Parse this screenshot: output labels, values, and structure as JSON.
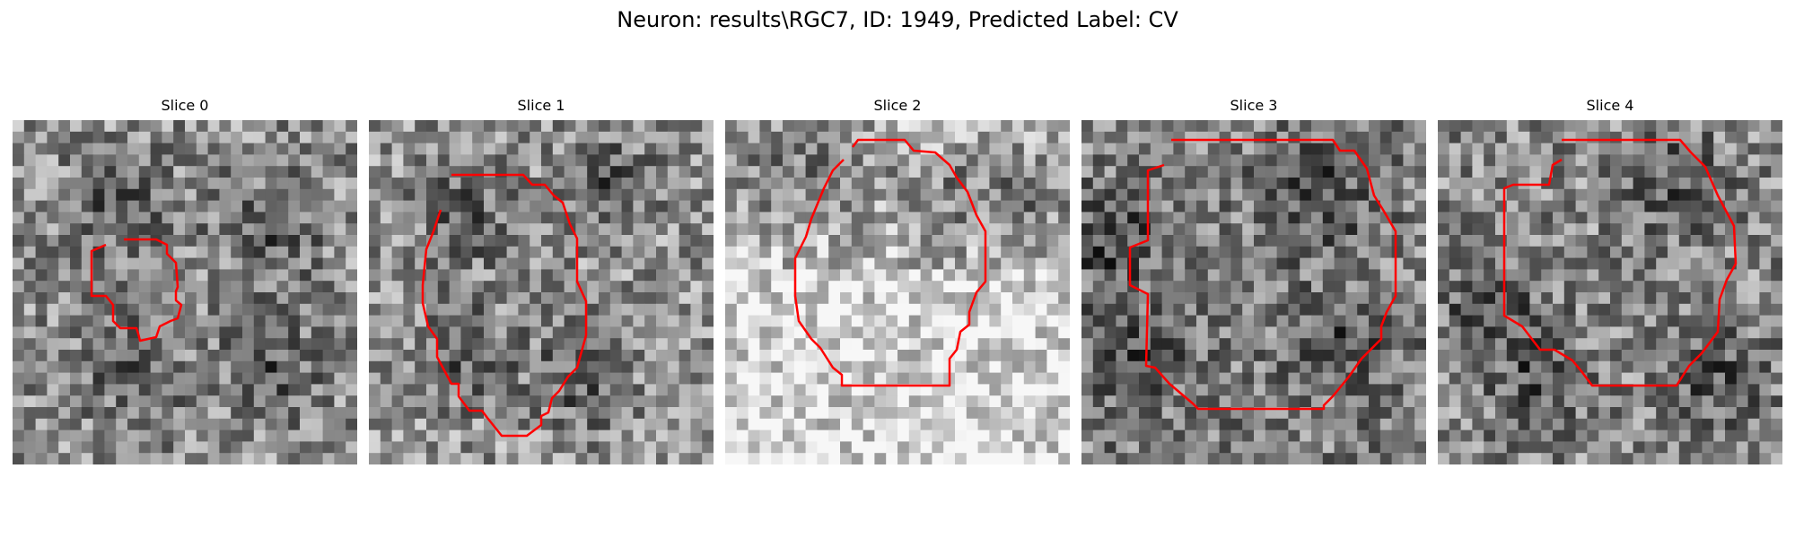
{
  "figure": {
    "title": "Neuron: results\\RGC7, ID: 1949, Predicted Label: CV"
  },
  "contour_color": "#ff0000",
  "slices": [
    {
      "label": "Slice 0",
      "base": 0.56
    },
    {
      "label": "Slice 1",
      "base": 0.58
    },
    {
      "label": "Slice 2",
      "base": 0.72
    },
    {
      "label": "Slice 3",
      "base": 0.5
    },
    {
      "label": "Slice 4",
      "base": 0.54
    }
  ]
}
